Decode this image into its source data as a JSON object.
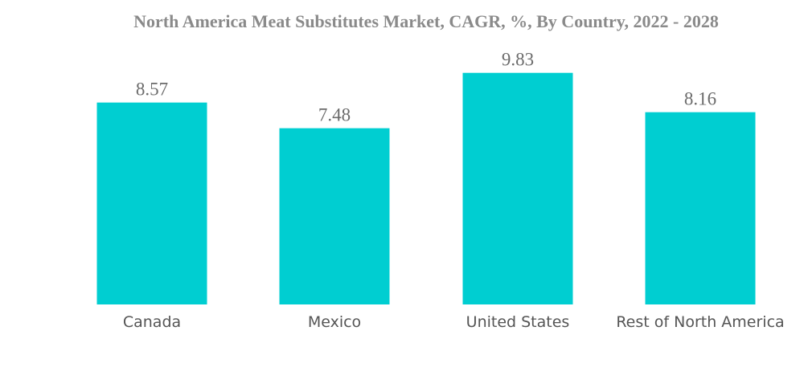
{
  "chart_data": {
    "type": "bar",
    "title": "North America Meat Substitutes Market, CAGR, %, By Country, 2022 - 2028",
    "categories": [
      "Canada",
      "Mexico",
      "United States",
      "Rest of North America"
    ],
    "values": [
      8.57,
      7.48,
      9.83,
      8.16
    ],
    "value_labels": [
      "8.57",
      "7.48",
      "9.83",
      "8.16"
    ],
    "xlabel": "",
    "ylabel": "",
    "ylim": [
      0,
      10.2
    ],
    "grid": false,
    "legend": "none",
    "bar_color": "#00CED1"
  }
}
